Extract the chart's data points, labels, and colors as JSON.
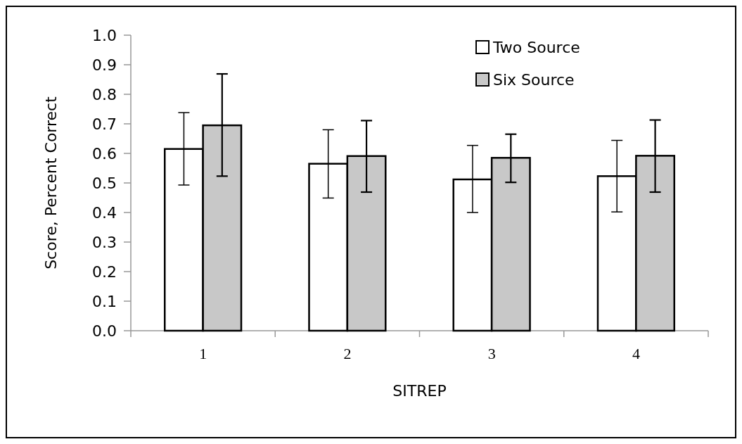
{
  "chart_data": {
    "type": "bar",
    "xlabel": "SITREP",
    "ylabel": "Score, Percent Correct",
    "categories": [
      "1",
      "2",
      "3",
      "4"
    ],
    "series": [
      {
        "name": "Two Source",
        "color": "#ffffff",
        "values": [
          0.615,
          0.565,
          0.512,
          0.523
        ],
        "errors": [
          [
            0.493,
            0.738
          ],
          [
            0.449,
            0.68
          ],
          [
            0.4,
            0.627
          ],
          [
            0.402,
            0.644
          ]
        ]
      },
      {
        "name": "Six Source",
        "color": "#c8c8c8",
        "values": [
          0.695,
          0.591,
          0.585,
          0.592
        ],
        "errors": [
          [
            0.523,
            0.869
          ],
          [
            0.469,
            0.711
          ],
          [
            0.502,
            0.665
          ],
          [
            0.469,
            0.713
          ]
        ]
      }
    ],
    "ylim": [
      0,
      1
    ],
    "yticks": [
      {
        "value": 0,
        "label": "0.0"
      },
      {
        "value": 0.1,
        "label": "0.1"
      },
      {
        "value": 0.2,
        "label": "0.2"
      },
      {
        "value": 0.3,
        "label": "0.3"
      },
      {
        "value": 0.4,
        "label": "0.4"
      },
      {
        "value": 0.5,
        "label": "0.5"
      },
      {
        "value": 0.6,
        "label": "0.6"
      },
      {
        "value": 0.7,
        "label": "0.7"
      },
      {
        "value": 0.8,
        "label": "0.8"
      },
      {
        "value": 0.9,
        "label": "0.9"
      },
      {
        "value": 1,
        "label": "1.0"
      }
    ],
    "legend": "top right",
    "grid": false
  }
}
